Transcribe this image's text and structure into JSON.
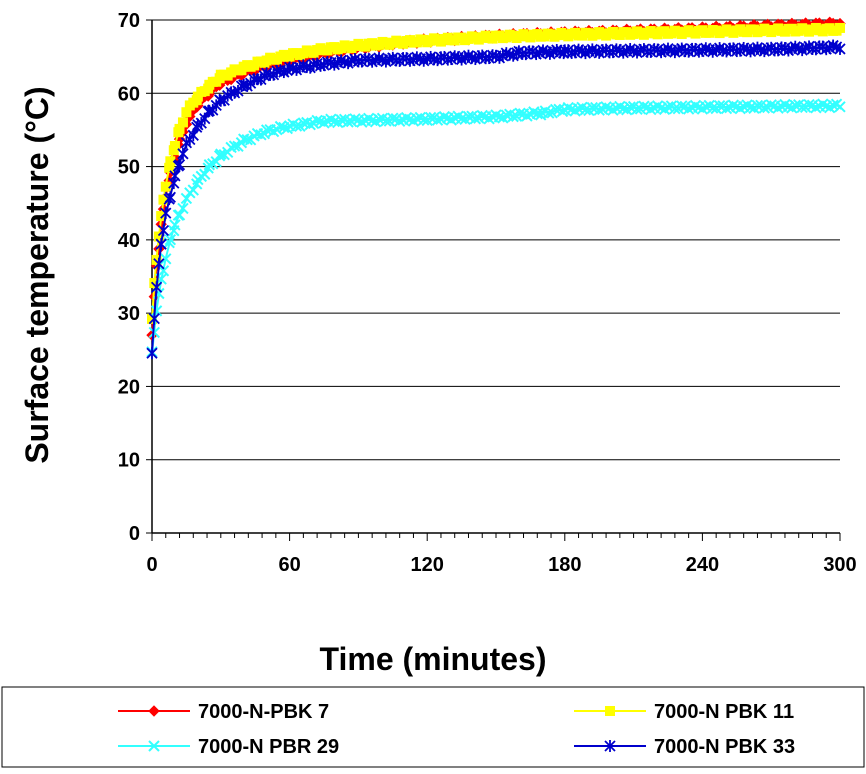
{
  "chart_data": {
    "type": "line",
    "title": "",
    "xlabel": "Time (minutes)",
    "ylabel": "Surface temperature (°C)",
    "xlim": [
      0,
      300
    ],
    "ylim": [
      0,
      70
    ],
    "xticks": [
      0,
      60,
      120,
      180,
      240,
      300
    ],
    "yticks": [
      0,
      10,
      20,
      30,
      40,
      50,
      60,
      70
    ],
    "grid": "horizontal",
    "legend_position": "bottom",
    "series": [
      {
        "name": "7000-N-PBK 7",
        "color": "#ff0000",
        "marker": "diamond",
        "x": [
          0,
          1,
          2,
          3,
          4,
          5,
          6,
          8,
          10,
          12,
          15,
          20,
          25,
          30,
          40,
          50,
          60,
          75,
          90,
          105,
          120,
          150,
          180,
          210,
          240,
          270,
          300
        ],
        "y": [
          27,
          32,
          36.5,
          39,
          42,
          44,
          46,
          49,
          51.5,
          53.5,
          56,
          58.5,
          60,
          61.5,
          62.8,
          63.8,
          64.5,
          65.5,
          66.2,
          66.8,
          67.2,
          67.8,
          68.2,
          68.5,
          68.8,
          69.2,
          69.5
        ]
      },
      {
        "name": "7000-N PBK 11",
        "color": "#ffff00",
        "marker": "square",
        "x": [
          0,
          1,
          2,
          3,
          4,
          5,
          6,
          8,
          10,
          12,
          15,
          20,
          25,
          30,
          40,
          50,
          60,
          75,
          90,
          105,
          120,
          150,
          180,
          210,
          240,
          270,
          300
        ],
        "y": [
          29,
          34,
          37.5,
          40.5,
          43,
          45.5,
          47.5,
          50.5,
          53,
          55,
          57.5,
          59.5,
          61,
          62.3,
          63.5,
          64.5,
          65.2,
          66,
          66.5,
          66.9,
          67.2,
          67.7,
          68,
          68.2,
          68.4,
          68.6,
          68.7
        ]
      },
      {
        "name": "7000-N PBR 29",
        "color": "#33ffff",
        "marker": "x",
        "x": [
          0,
          1,
          2,
          3,
          4,
          5,
          6,
          8,
          10,
          12,
          15,
          20,
          25,
          30,
          40,
          50,
          60,
          75,
          90,
          105,
          120,
          150,
          170,
          180,
          210,
          240,
          270,
          300
        ],
        "y": [
          24.5,
          27.5,
          30.5,
          32.5,
          34.5,
          36,
          37.5,
          40,
          42,
          43.5,
          45.5,
          48,
          50,
          51.5,
          53.5,
          54.8,
          55.5,
          56.2,
          56.3,
          56.4,
          56.5,
          56.8,
          57.3,
          57.8,
          58,
          58.1,
          58.2,
          58.3
        ]
      },
      {
        "name": "7000-N PBK 33",
        "color": "#0000cc",
        "marker": "star",
        "x": [
          0,
          1,
          2,
          3,
          4,
          5,
          6,
          8,
          10,
          12,
          15,
          20,
          25,
          30,
          40,
          50,
          60,
          75,
          90,
          105,
          120,
          150,
          160,
          180,
          210,
          240,
          270,
          300
        ],
        "y": [
          24.5,
          29.5,
          33.5,
          36.5,
          39.5,
          41.5,
          43.5,
          46,
          48.5,
          50.5,
          53,
          55.5,
          57.5,
          59,
          61,
          62.5,
          63.3,
          64,
          64.5,
          64.6,
          64.7,
          65,
          65.5,
          65.7,
          65.8,
          65.9,
          66,
          66.3
        ]
      }
    ]
  }
}
